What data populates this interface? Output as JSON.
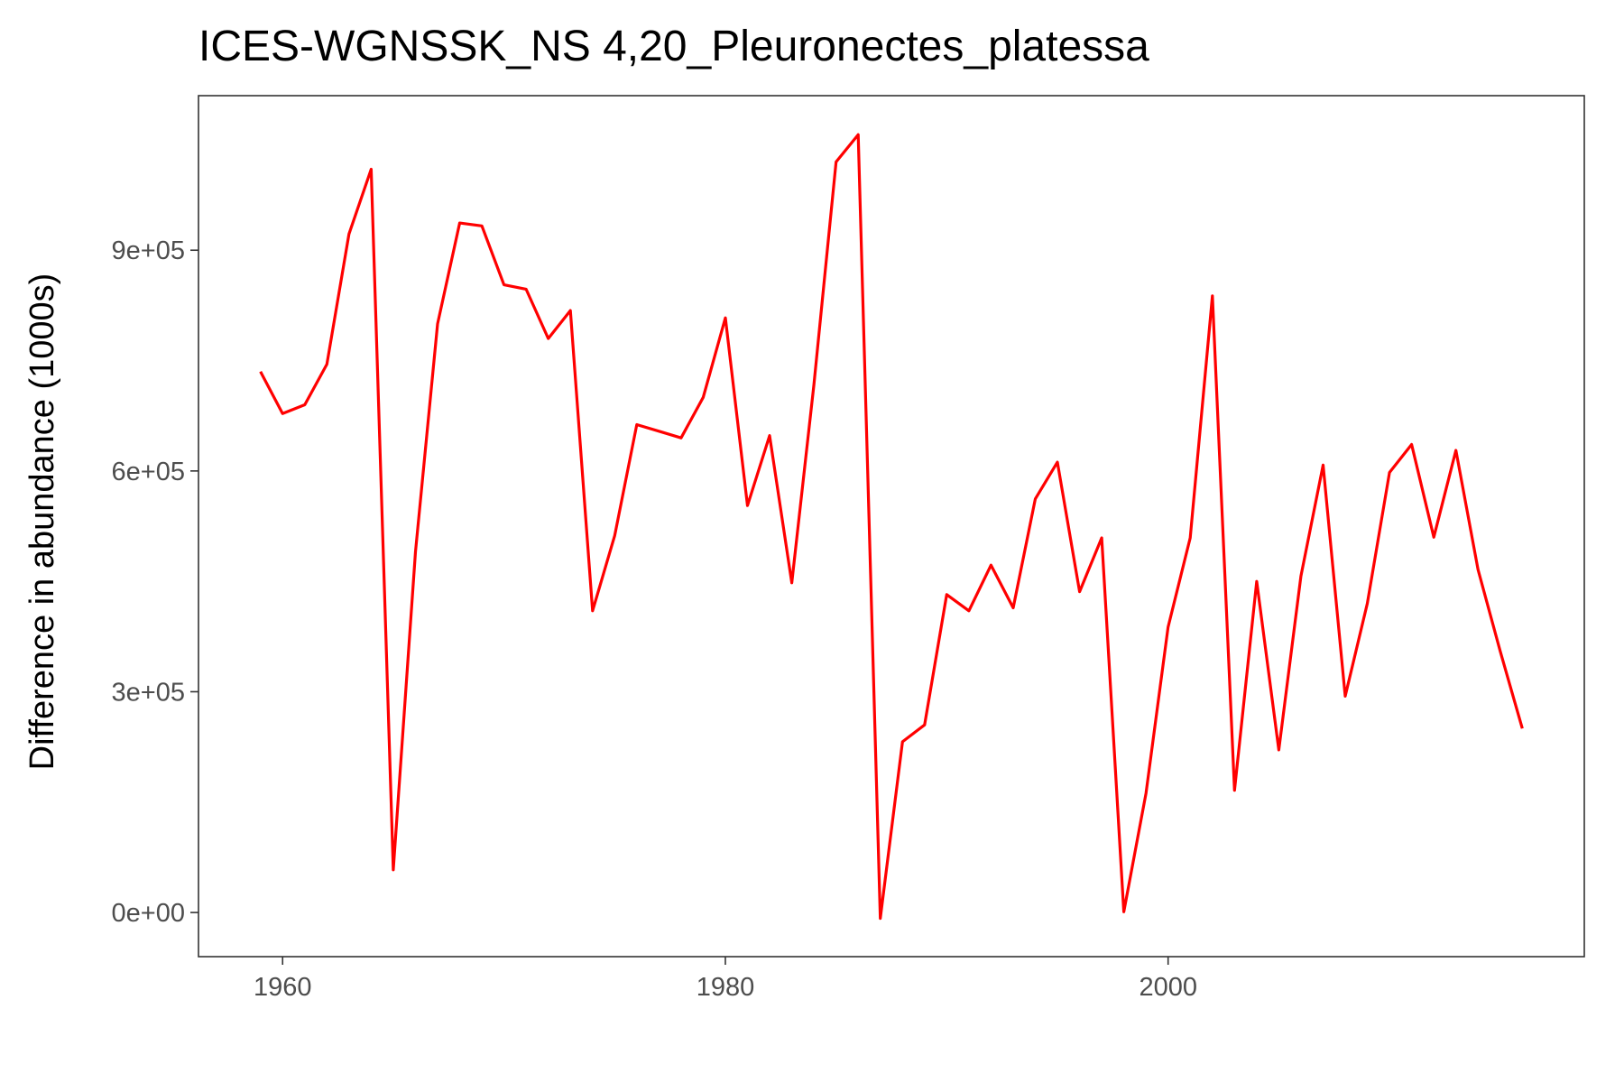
{
  "chart_data": {
    "type": "line",
    "title": "ICES-WGNSSK_NS 4,20_Pleuronectes_platessa",
    "xlabel": "",
    "ylabel": "Difference in abundance (1000s)",
    "xlim": [
      1956.2,
      2018.8
    ],
    "ylim": [
      -60000,
      1110000
    ],
    "x_ticks": [
      1960,
      1980,
      2000
    ],
    "x_tick_labels": [
      "1960",
      "1980",
      "2000"
    ],
    "y_ticks": [
      0,
      300000,
      600000,
      900000
    ],
    "y_tick_labels": [
      "0e+00",
      "3e+05",
      "6e+05",
      "9e+05"
    ],
    "grid": false,
    "legend": "none",
    "line_color": "#ff0000",
    "series": [
      {
        "x": [
          1959,
          1960,
          1961,
          1962,
          1963,
          1964,
          1965,
          1966,
          1967,
          1968,
          1969,
          1970,
          1971,
          1972,
          1973,
          1974,
          1975,
          1976,
          1977,
          1978,
          1979,
          1980,
          1981,
          1982,
          1983,
          1984,
          1985,
          1986,
          1987,
          1988,
          1989,
          1990,
          1991,
          1992,
          1993,
          1994,
          1995,
          1996,
          1997,
          1998,
          1999,
          2000,
          2001,
          2002,
          2003,
          2004,
          2005,
          2006,
          2007,
          2008,
          2009,
          2010,
          2011,
          2012,
          2013,
          2014,
          2015,
          2016
        ],
        "values": [
          735000,
          678000,
          690000,
          745000,
          922000,
          1010000,
          58000,
          490000,
          800000,
          937000,
          933000,
          853000,
          847000,
          780000,
          818000,
          410000,
          512000,
          663000,
          654000,
          645000,
          700000,
          808000,
          553000,
          648000,
          448000,
          717000,
          1020000,
          1057000,
          -8000,
          232000,
          255000,
          432000,
          410000,
          472000,
          414000,
          562000,
          612000,
          436000,
          509000,
          1000,
          162000,
          388000,
          509000,
          838000,
          166000,
          450000,
          221000,
          457000,
          608000,
          294000,
          420000,
          598000,
          636000,
          510000,
          628000,
          466000,
          355000,
          250000
        ]
      }
    ]
  }
}
